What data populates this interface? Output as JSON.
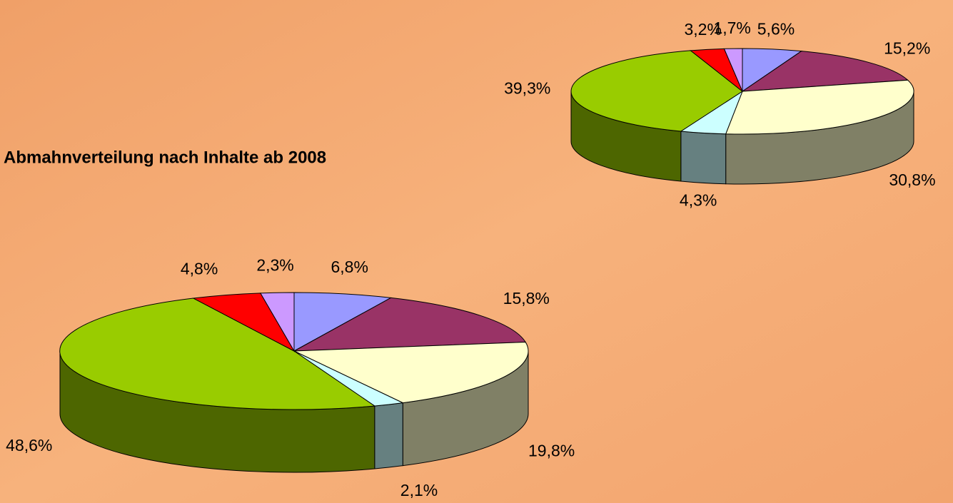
{
  "chart_data": [
    {
      "type": "pie3d",
      "categories": [
        null,
        null,
        null,
        null,
        null,
        null,
        null
      ],
      "values": [
        5.6,
        15.2,
        30.8,
        4.3,
        39.3,
        3.2,
        1.7
      ],
      "value_labels": [
        "5,6%",
        "15,2%",
        "30,8%",
        "4,3%",
        "39,3%",
        "3,2%",
        "1,7%"
      ],
      "colors": [
        "#9999ff",
        "#993366",
        "#ffffcc",
        "#ccffff",
        "#99cc00",
        "#ff0000",
        "#cc99ff"
      ]
    },
    {
      "type": "pie3d",
      "title": "Abmahnverteilung nach Inhalte ab 2008",
      "categories": [
        null,
        null,
        null,
        null,
        null,
        null,
        null
      ],
      "values": [
        6.8,
        15.8,
        19.8,
        2.1,
        48.6,
        4.8,
        2.3
      ],
      "value_labels": [
        "6,8%",
        "15,8%",
        "19,8%",
        "2,1%",
        "48,6%",
        "4,8%",
        "2,3%"
      ],
      "colors": [
        "#9999ff",
        "#993366",
        "#ffffcc",
        "#ccffff",
        "#99cc00",
        "#ff0000",
        "#cc99ff"
      ]
    }
  ]
}
